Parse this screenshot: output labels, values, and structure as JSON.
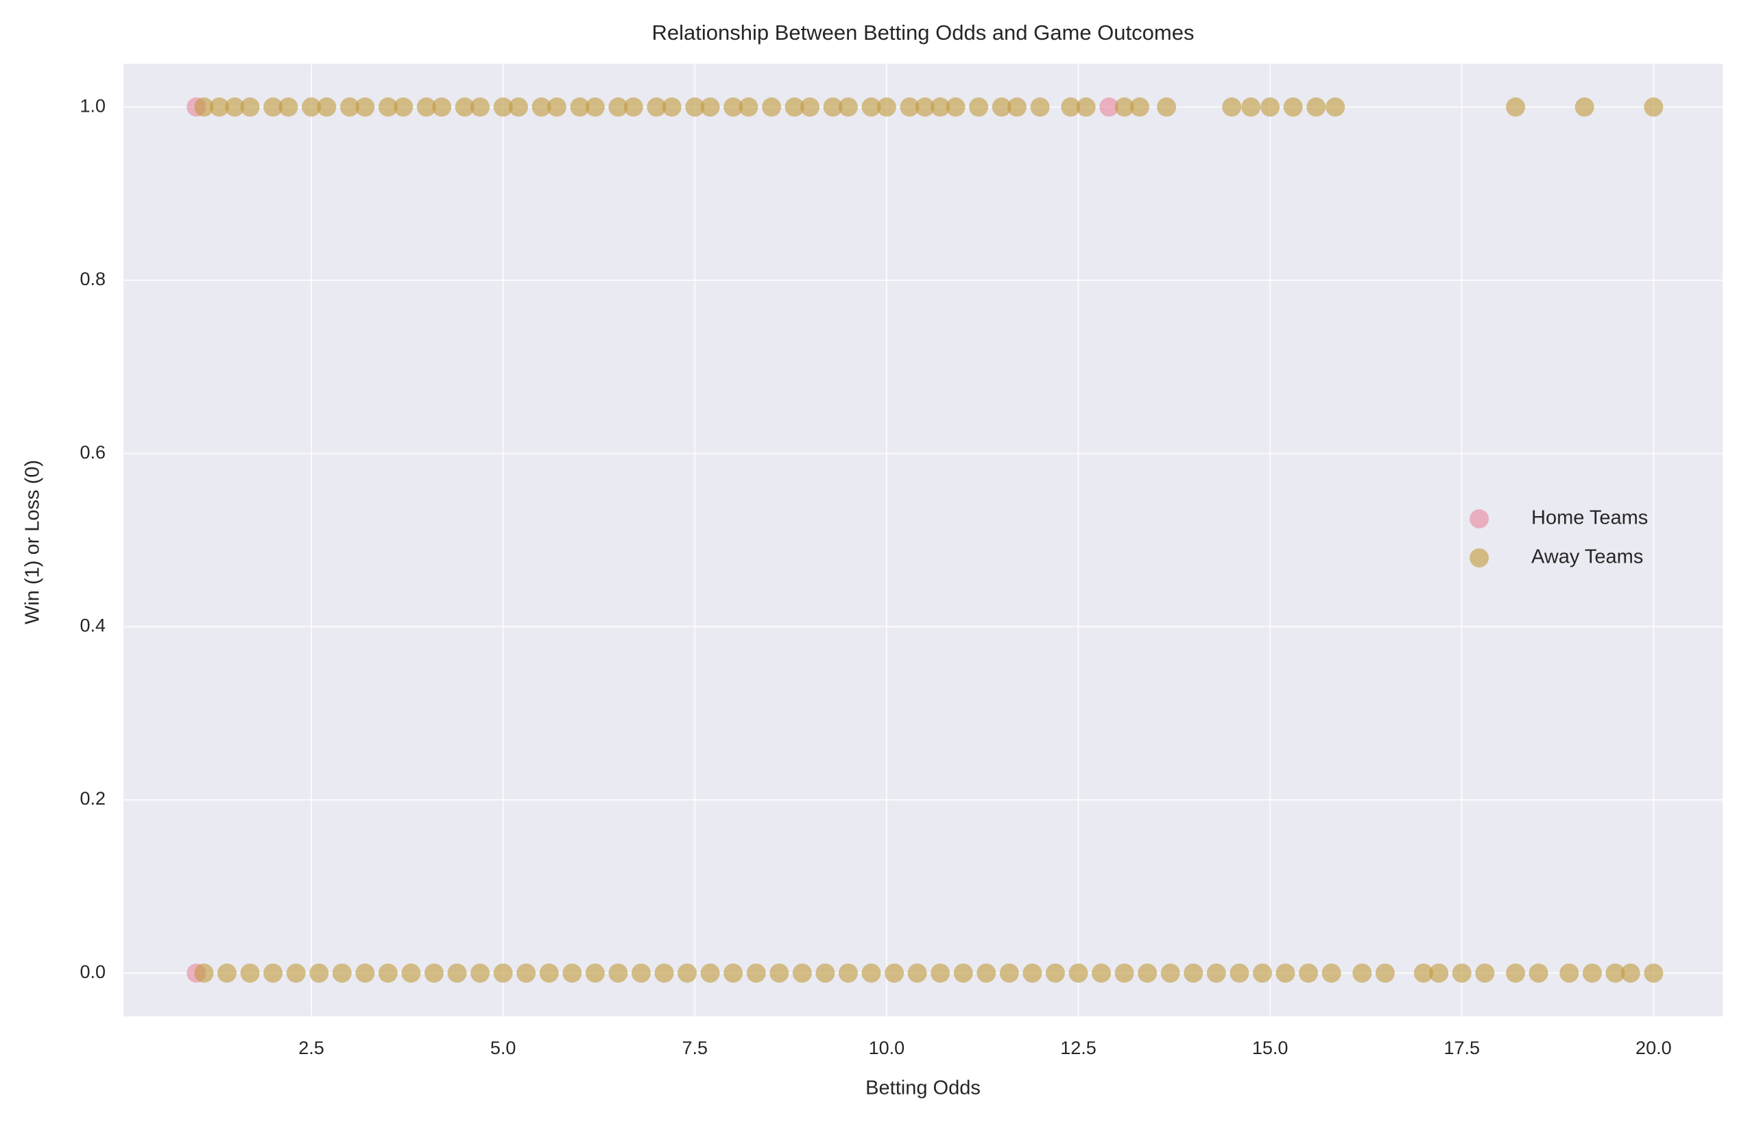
{
  "chart_data": {
    "type": "scatter",
    "title": "Relationship Between Betting Odds and Game Outcomes",
    "xlabel": "Betting Odds",
    "ylabel": "Win (1) or Loss (0)",
    "xlim": [
      0.05,
      20.9
    ],
    "ylim": [
      -0.05,
      1.05
    ],
    "xticks": [
      2.5,
      {
        "value": 5,
        "label": "5.0"
      },
      7.5,
      {
        "value": 10,
        "label": "10.0"
      },
      12.5,
      {
        "value": 15,
        "label": "15.0"
      },
      17.5,
      {
        "value": 20,
        "label": "20.0"
      }
    ],
    "yticks": [
      {
        "value": 0,
        "label": "0.0"
      },
      0.2,
      0.4,
      0.6,
      0.8,
      {
        "value": 1,
        "label": "1.0"
      }
    ],
    "grid": true,
    "legend": "center right",
    "series": [
      {
        "name": "Home Teams",
        "color": "#e8879c",
        "x": [
          1.0,
          1.0,
          12.9
        ],
        "values": [
          1,
          0,
          1
        ]
      },
      {
        "name": "Away Teams",
        "color": "#bf9a3a",
        "x": [
          1.1,
          1.3,
          1.5,
          1.7,
          2.0,
          2.2,
          2.5,
          2.7,
          3.0,
          3.2,
          3.5,
          3.7,
          4.0,
          4.2,
          4.5,
          4.7,
          5.0,
          5.2,
          5.5,
          5.7,
          6.0,
          6.2,
          6.5,
          6.7,
          7.0,
          7.2,
          7.5,
          7.7,
          8.0,
          8.2,
          8.5,
          8.8,
          9.0,
          9.3,
          9.5,
          9.8,
          10.0,
          10.3,
          10.5,
          10.7,
          10.9,
          11.2,
          11.5,
          11.7,
          12.0,
          12.4,
          12.6,
          13.1,
          13.3,
          13.65,
          14.5,
          14.75,
          15.0,
          15.3,
          15.6,
          15.85,
          18.2,
          19.1,
          20.0,
          1.1,
          1.4,
          1.7,
          2.0,
          2.3,
          2.6,
          2.9,
          3.2,
          3.5,
          3.8,
          4.1,
          4.4,
          4.7,
          5.0,
          5.3,
          5.6,
          5.9,
          6.2,
          6.5,
          6.8,
          7.1,
          7.4,
          7.7,
          8.0,
          8.3,
          8.6,
          8.9,
          9.2,
          9.5,
          9.8,
          10.1,
          10.4,
          10.7,
          11.0,
          11.3,
          11.6,
          11.9,
          12.2,
          12.5,
          12.8,
          13.1,
          13.4,
          13.7,
          14.0,
          14.3,
          14.6,
          14.9,
          15.2,
          15.5,
          15.8,
          16.2,
          16.5,
          17.0,
          17.2,
          17.5,
          17.8,
          18.2,
          18.5,
          18.9,
          19.2,
          19.5,
          19.7,
          20.0
        ],
        "values": [
          1,
          1,
          1,
          1,
          1,
          1,
          1,
          1,
          1,
          1,
          1,
          1,
          1,
          1,
          1,
          1,
          1,
          1,
          1,
          1,
          1,
          1,
          1,
          1,
          1,
          1,
          1,
          1,
          1,
          1,
          1,
          1,
          1,
          1,
          1,
          1,
          1,
          1,
          1,
          1,
          1,
          1,
          1,
          1,
          1,
          1,
          1,
          1,
          1,
          1,
          1,
          1,
          1,
          1,
          1,
          1,
          1,
          1,
          1,
          0,
          0,
          0,
          0,
          0,
          0,
          0,
          0,
          0,
          0,
          0,
          0,
          0,
          0,
          0,
          0,
          0,
          0,
          0,
          0,
          0,
          0,
          0,
          0,
          0,
          0,
          0,
          0,
          0,
          0,
          0,
          0,
          0,
          0,
          0,
          0,
          0,
          0,
          0,
          0,
          0,
          0,
          0,
          0,
          0,
          0,
          0,
          0,
          0,
          0,
          0,
          0,
          0,
          0,
          0,
          0,
          0,
          0,
          0,
          0,
          0,
          0,
          0
        ]
      }
    ]
  }
}
